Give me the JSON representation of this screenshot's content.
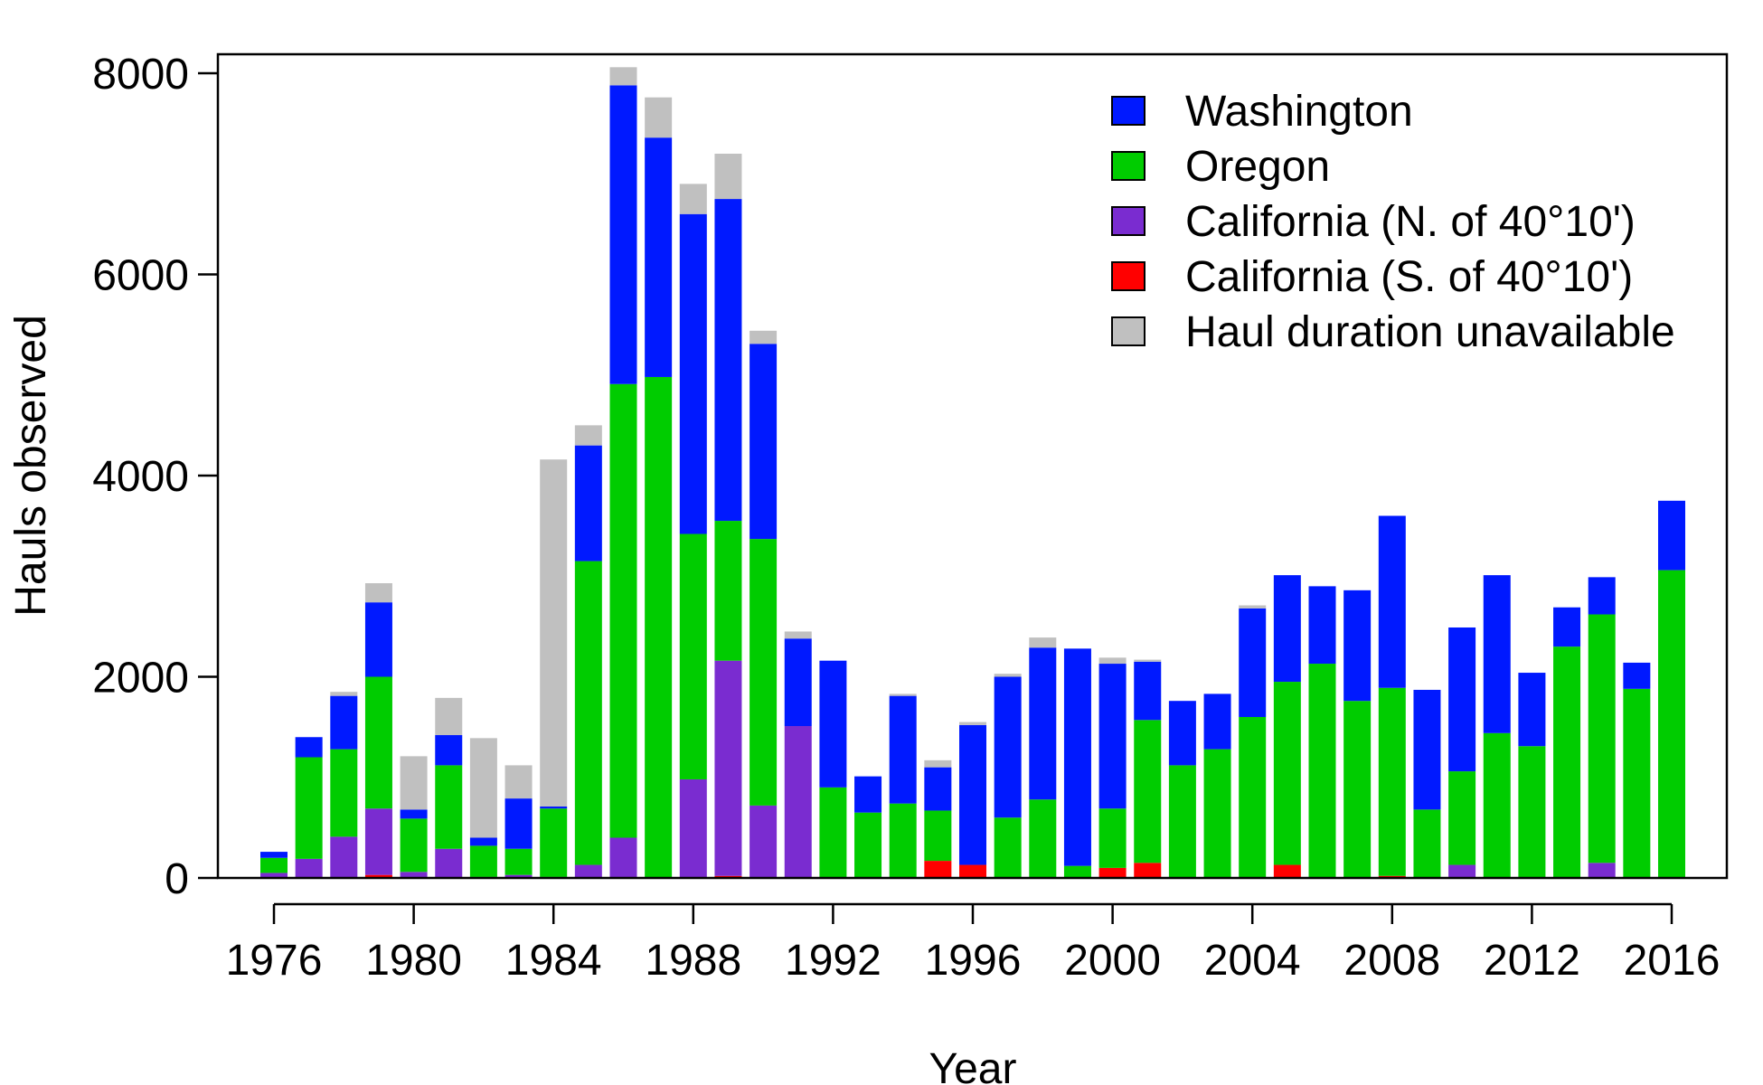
{
  "chart_data": {
    "type": "bar",
    "stacked": true,
    "xlabel": "Year",
    "ylabel": "Hauls observed",
    "ylim": [
      0,
      8000
    ],
    "yticks": [
      0,
      2000,
      4000,
      6000,
      8000
    ],
    "xticks": [
      1976,
      1980,
      1984,
      1988,
      1992,
      1996,
      2000,
      2004,
      2008,
      2012,
      2016
    ],
    "grid": false,
    "legend_position": "top-right",
    "categories": [
      1976,
      1977,
      1978,
      1979,
      1980,
      1981,
      1982,
      1983,
      1984,
      1985,
      1986,
      1987,
      1988,
      1989,
      1990,
      1991,
      1992,
      1993,
      1994,
      1995,
      1996,
      1997,
      1998,
      1999,
      2000,
      2001,
      2002,
      2003,
      2004,
      2005,
      2006,
      2007,
      2008,
      2009,
      2010,
      2011,
      2012,
      2013,
      2014,
      2015,
      2016
    ],
    "series": [
      {
        "name": "California (S. of 40°10')",
        "color": "#ff0000",
        "values": [
          0,
          0,
          0,
          30,
          0,
          0,
          0,
          0,
          0,
          0,
          0,
          0,
          0,
          20,
          0,
          0,
          0,
          0,
          0,
          170,
          130,
          0,
          0,
          0,
          100,
          150,
          0,
          0,
          0,
          130,
          0,
          0,
          20,
          0,
          0,
          0,
          0,
          0,
          0,
          0,
          0
        ]
      },
      {
        "name": "California (N. of 40°10')",
        "color": "#7a2cd0",
        "values": [
          50,
          190,
          410,
          660,
          60,
          290,
          10,
          30,
          10,
          130,
          400,
          0,
          980,
          2140,
          720,
          1510,
          0,
          0,
          0,
          0,
          0,
          0,
          0,
          0,
          0,
          0,
          0,
          0,
          0,
          0,
          0,
          0,
          0,
          0,
          130,
          0,
          0,
          0,
          150,
          0,
          0
        ]
      },
      {
        "name": "Oregon",
        "color": "#00cc00",
        "values": [
          150,
          1010,
          870,
          1310,
          530,
          830,
          310,
          260,
          680,
          3020,
          4510,
          4980,
          2440,
          1390,
          2650,
          0,
          900,
          650,
          740,
          500,
          0,
          600,
          780,
          120,
          590,
          1420,
          1120,
          1280,
          1600,
          1820,
          2130,
          1760,
          1870,
          680,
          930,
          1440,
          1310,
          2300,
          2470,
          1880,
          3060
        ]
      },
      {
        "name": "Washington",
        "color": "#0019ff",
        "values": [
          60,
          200,
          530,
          740,
          90,
          300,
          80,
          500,
          20,
          1150,
          2970,
          2380,
          3180,
          3200,
          1940,
          870,
          1260,
          360,
          1070,
          430,
          1390,
          1400,
          1510,
          2160,
          1440,
          580,
          640,
          550,
          1080,
          1060,
          770,
          1100,
          1710,
          1190,
          1430,
          1570,
          730,
          390,
          370,
          260,
          690
        ]
      },
      {
        "name": "Haul duration unavailable",
        "color": "#c0c0c0",
        "values": [
          0,
          0,
          40,
          190,
          530,
          370,
          990,
          330,
          3450,
          200,
          180,
          400,
          300,
          450,
          130,
          70,
          0,
          0,
          20,
          70,
          30,
          30,
          100,
          0,
          60,
          20,
          0,
          0,
          30,
          0,
          0,
          0,
          0,
          0,
          0,
          0,
          0,
          0,
          0,
          0,
          0
        ]
      }
    ],
    "legend_order": [
      "Washington",
      "Oregon",
      "California (N. of 40°10')",
      "California (S. of 40°10')",
      "Haul duration unavailable"
    ]
  }
}
